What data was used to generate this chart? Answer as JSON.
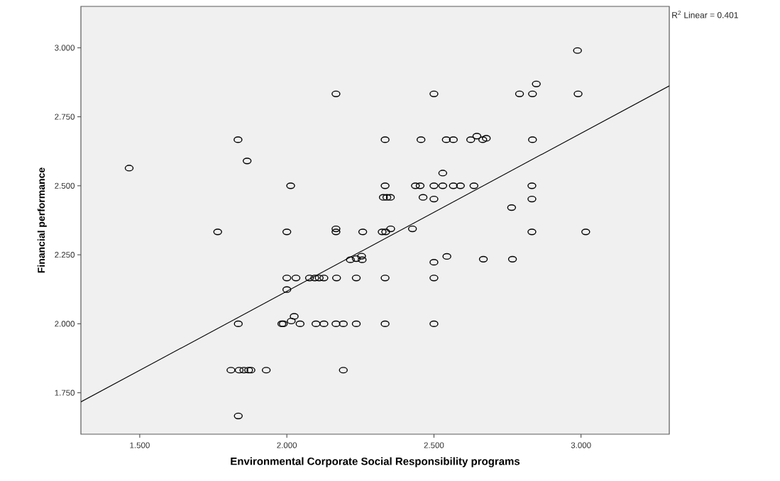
{
  "chart_data": {
    "type": "scatter",
    "xlabel": "Environmental Corporate Social Responsibility programs",
    "ylabel": "Financial performance",
    "annotations": [
      "R$^{2}$ Linear = 0.401"
    ],
    "xlim": [
      1.3,
      3.3
    ],
    "ylim": [
      1.6,
      3.15
    ],
    "xticks": [
      {
        "value": 1.5,
        "label": "1.500"
      },
      {
        "value": 2.0,
        "label": "2.000"
      },
      {
        "value": 2.5,
        "label": "2.500"
      },
      {
        "value": 3.0,
        "label": "3.000"
      }
    ],
    "yticks": [
      {
        "value": 1.75,
        "label": "1.750"
      },
      {
        "value": 2.0,
        "label": "2.000"
      },
      {
        "value": 2.25,
        "label": "2.250"
      },
      {
        "value": 2.5,
        "label": "2.500"
      },
      {
        "value": 2.75,
        "label": "2.750"
      },
      {
        "value": 3.0,
        "label": "3.000"
      }
    ],
    "marker": "circle",
    "series": [
      {
        "color": "#000000",
        "x": [
          1.464,
          1.834,
          1.865,
          2.167,
          2.013,
          2.334,
          2.456,
          2.334,
          2.437,
          2.453,
          2.328,
          2.34,
          2.352,
          2.463,
          1.765,
          2.0,
          2.167,
          2.167,
          2.258,
          2.324,
          2.336,
          2.353,
          2.427,
          2.988,
          2.848,
          2.5,
          2.791,
          2.835,
          2.99,
          2.542,
          2.566,
          2.625,
          2.646,
          2.666,
          2.678,
          2.835,
          2.53,
          2.5,
          2.53,
          2.566,
          2.59,
          2.636,
          2.833,
          2.5,
          2.833,
          2.764,
          2.833,
          3.016,
          2.5,
          2.544,
          2.668,
          2.767,
          2.5,
          2.5,
          2.216,
          2.236,
          2.254,
          2.256,
          2.0,
          2.031,
          2.077,
          2.095,
          2.11,
          2.126,
          2.169,
          2.236,
          2.334,
          2.0,
          1.835,
          1.983,
          1.988,
          2.025,
          2.015,
          2.045,
          2.099,
          2.126,
          2.167,
          2.192,
          2.236,
          2.334,
          1.81,
          1.838,
          1.854,
          1.87,
          1.878,
          1.93,
          2.192,
          1.835
        ],
        "values": [
          2.564,
          2.667,
          2.59,
          2.833,
          2.5,
          2.667,
          2.667,
          2.5,
          2.5,
          2.5,
          2.458,
          2.458,
          2.458,
          2.458,
          2.333,
          2.333,
          2.344,
          2.333,
          2.333,
          2.333,
          2.333,
          2.344,
          2.344,
          2.99,
          2.869,
          2.833,
          2.833,
          2.833,
          2.833,
          2.667,
          2.667,
          2.667,
          2.68,
          2.667,
          2.672,
          2.667,
          2.546,
          2.5,
          2.5,
          2.5,
          2.5,
          2.5,
          2.5,
          2.452,
          2.452,
          2.421,
          2.333,
          2.333,
          2.223,
          2.244,
          2.234,
          2.234,
          2.166,
          2.0,
          2.232,
          2.236,
          2.245,
          2.232,
          2.166,
          2.166,
          2.166,
          2.166,
          2.166,
          2.166,
          2.166,
          2.166,
          2.166,
          2.124,
          2.0,
          2.0,
          2.0,
          2.027,
          2.01,
          2.0,
          2.0,
          2.0,
          2.0,
          2.0,
          2.0,
          2.0,
          1.832,
          1.832,
          1.832,
          1.832,
          1.832,
          1.832,
          1.832,
          1.666
        ]
      },
      {
        "type": "line",
        "color": "#000000",
        "marker": "none",
        "x": [
          1.3,
          3.3
        ],
        "values": [
          1.717,
          2.862
        ]
      }
    ]
  }
}
